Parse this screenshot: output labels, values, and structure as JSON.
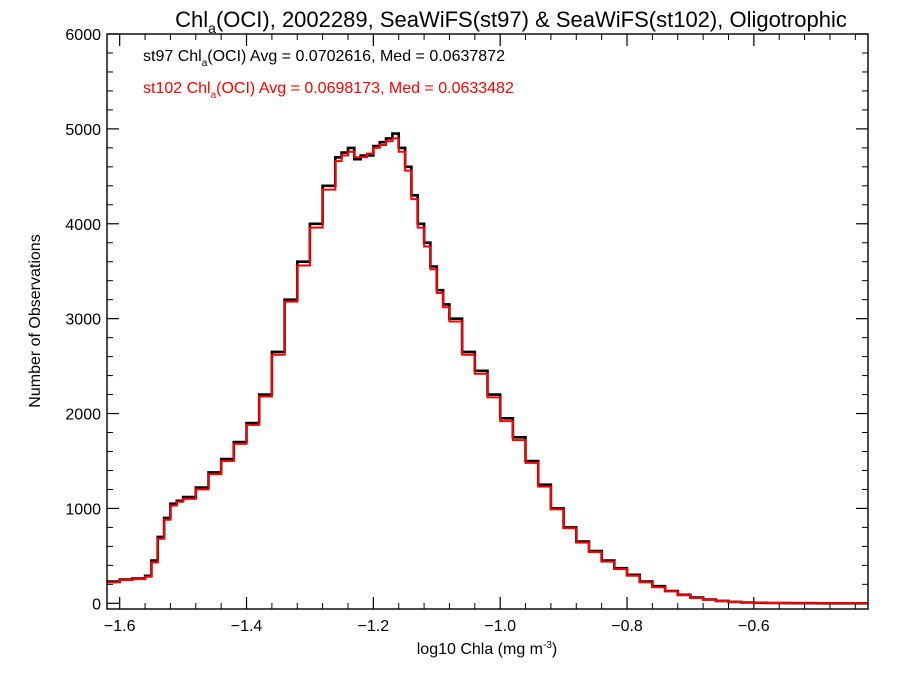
{
  "chart_data": {
    "type": "line",
    "title": {
      "pre": "Chl",
      "sub": "a",
      "post": "(OCI), 2002289, SeaWiFS(st97) & SeaWiFS(st102), Oligotrophic"
    },
    "xlabel": {
      "pre": "log10 Chla (mg m",
      "sup": "-3",
      "post": ")"
    },
    "ylabel": "Number of Observations",
    "xlim": [
      -1.62,
      -0.42
    ],
    "ylim": [
      -60,
      6000
    ],
    "xticks": [
      -1.6,
      -1.4,
      -1.2,
      -1.0,
      -0.8,
      -0.6
    ],
    "xtick_labels": [
      "−1.6",
      "−1.4",
      "−1.2",
      "−1.0",
      "−0.8",
      "−0.6"
    ],
    "yticks": [
      0,
      1000,
      2000,
      3000,
      4000,
      5000,
      6000
    ],
    "ytick_labels": [
      "0",
      "1000",
      "2000",
      "3000",
      "4000",
      "5000",
      "6000"
    ],
    "grid": false,
    "annotations": [
      {
        "pre": "st97 Chl",
        "sub": "a",
        "post": "(OCI) Avg = 0.0702616, Med = 0.0637872",
        "color": "#000000"
      },
      {
        "pre": "st102 Chl",
        "sub": "a",
        "post": "(OCI) Avg = 0.0698173, Med = 0.0633482",
        "color": "#ff0000"
      }
    ],
    "x": [
      -1.62,
      -1.6,
      -1.58,
      -1.56,
      -1.55,
      -1.54,
      -1.53,
      -1.52,
      -1.51,
      -1.5,
      -1.48,
      -1.46,
      -1.44,
      -1.42,
      -1.4,
      -1.38,
      -1.36,
      -1.34,
      -1.32,
      -1.3,
      -1.28,
      -1.26,
      -1.25,
      -1.24,
      -1.23,
      -1.22,
      -1.21,
      -1.2,
      -1.19,
      -1.18,
      -1.17,
      -1.16,
      -1.15,
      -1.14,
      -1.13,
      -1.12,
      -1.11,
      -1.1,
      -1.09,
      -1.08,
      -1.06,
      -1.04,
      -1.02,
      -1.0,
      -0.98,
      -0.96,
      -0.94,
      -0.92,
      -0.9,
      -0.88,
      -0.86,
      -0.84,
      -0.82,
      -0.8,
      -0.78,
      -0.76,
      -0.74,
      -0.72,
      -0.7,
      -0.68,
      -0.66,
      -0.64,
      -0.62,
      -0.6,
      -0.58,
      -0.56,
      -0.54,
      -0.52,
      -0.5,
      -0.48,
      -0.46,
      -0.44,
      -0.42
    ],
    "series": [
      {
        "color": "#000000",
        "values": [
          230,
          250,
          260,
          290,
          450,
          700,
          900,
          1050,
          1080,
          1120,
          1220,
          1380,
          1520,
          1700,
          1900,
          2200,
          2650,
          3200,
          3600,
          4000,
          4400,
          4700,
          4750,
          4800,
          4680,
          4720,
          4720,
          4820,
          4860,
          4900,
          4950,
          4800,
          4600,
          4300,
          4000,
          3800,
          3550,
          3300,
          3150,
          3000,
          2650,
          2450,
          2200,
          1950,
          1750,
          1500,
          1250,
          1000,
          800,
          650,
          550,
          450,
          370,
          300,
          230,
          180,
          130,
          90,
          60,
          40,
          25,
          15,
          8,
          5,
          3,
          2,
          1,
          1,
          0,
          0,
          0,
          0,
          0
        ]
      },
      {
        "color": "#ff0000",
        "values": [
          220,
          245,
          255,
          280,
          430,
          680,
          880,
          1030,
          1070,
          1100,
          1200,
          1360,
          1500,
          1680,
          1880,
          2180,
          2620,
          3180,
          3560,
          3960,
          4360,
          4660,
          4720,
          4760,
          4700,
          4700,
          4740,
          4800,
          4830,
          4870,
          4900,
          4760,
          4560,
          4260,
          3960,
          3760,
          3520,
          3270,
          3120,
          2970,
          2620,
          2420,
          2170,
          1920,
          1720,
          1480,
          1230,
          990,
          790,
          640,
          540,
          440,
          360,
          290,
          220,
          170,
          125,
          85,
          55,
          38,
          23,
          14,
          7,
          5,
          3,
          2,
          1,
          1,
          0,
          0,
          0,
          0,
          0
        ]
      }
    ]
  }
}
